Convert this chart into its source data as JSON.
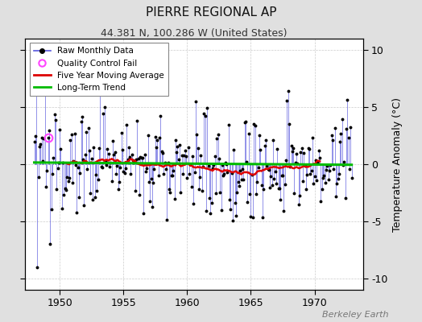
{
  "title": "PIERRE REGIONAL AP",
  "subtitle": "44.381 N, 100.286 W (United States)",
  "ylabel": "Temperature Anomaly (°C)",
  "watermark": "Berkeley Earth",
  "start_year": 1948.0,
  "end_year": 1973.5,
  "xlim": [
    1947.3,
    1973.8
  ],
  "ylim": [
    -11,
    11
  ],
  "yticks": [
    -10,
    -5,
    0,
    5,
    10
  ],
  "xticks": [
    1950,
    1955,
    1960,
    1965,
    1970
  ],
  "bg_color": "#e0e0e0",
  "plot_bg_color": "#ffffff",
  "raw_line_color": "#5555dd",
  "raw_marker_color": "#000000",
  "qc_fail_color": "#ff44ff",
  "moving_avg_color": "#dd0000",
  "trend_color": "#00bb00",
  "grid_color": "#cccccc"
}
